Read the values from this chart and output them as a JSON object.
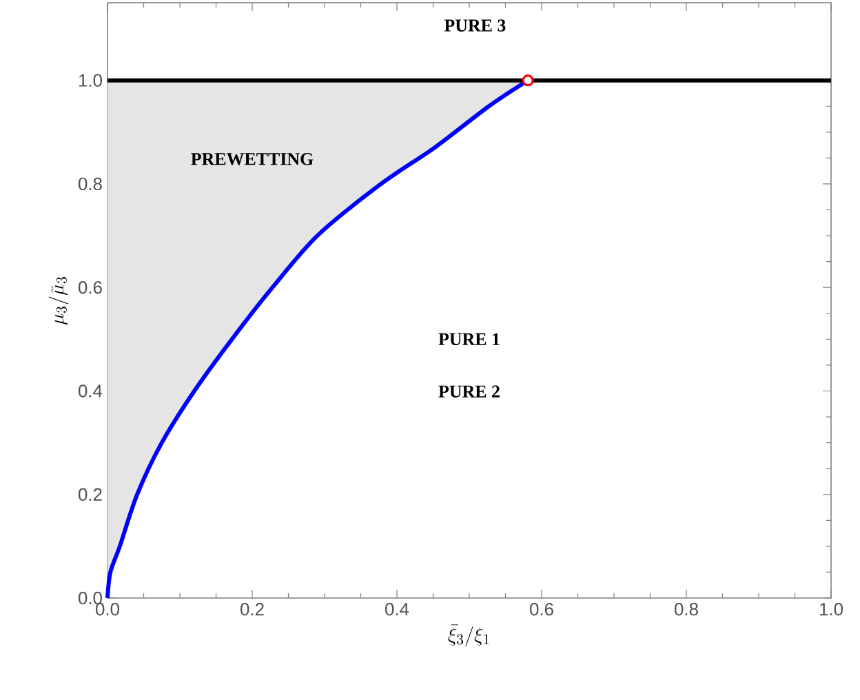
{
  "chart_data": {
    "type": "line",
    "xlabel": "\\bar{\\xi}_3/\\xi_1",
    "ylabel": "\\mu_3/\\bar{\\mu}_3",
    "xlim": [
      0,
      1.0
    ],
    "ylim": [
      0,
      1.15
    ],
    "xticks": [
      {
        "value": 0,
        "label": "0.0"
      },
      0.2,
      0.4,
      0.6,
      0.8,
      {
        "value": 1.0,
        "label": "1.0"
      }
    ],
    "yticks": [
      {
        "value": 0,
        "label": "0.0"
      },
      0.2,
      0.4,
      0.6,
      0.8,
      {
        "value": 1.0,
        "label": "1.0"
      }
    ],
    "series": [
      {
        "color": "#0000ff",
        "x": [
          0,
          0.004,
          0.017,
          0.041,
          0.075,
          0.12,
          0.172,
          0.228,
          0.29,
          0.378,
          0.452,
          0.527,
          0.581
        ],
        "values": [
          0,
          0.05,
          0.1,
          0.2,
          0.3,
          0.4,
          0.5,
          0.6,
          0.7,
          0.8,
          0.87,
          0.95,
          1.0
        ],
        "lower": [
          0,
          0.05,
          0.1,
          0.2,
          0.3,
          0.4,
          0.5,
          0.6,
          0.7,
          0.8,
          0.87,
          0.95,
          1.0
        ],
        "upper": [
          1,
          1,
          1,
          1,
          1,
          1,
          1,
          1,
          1,
          1,
          1,
          1,
          1
        ]
      },
      {
        "type": "scatter",
        "color": "#ff0000",
        "marker": "circle",
        "x": [
          0.581
        ],
        "values": [
          1.0
        ]
      }
    ],
    "ref_lines": [
      {
        "axis": "y",
        "value": 1.0,
        "color": "#000000"
      }
    ],
    "annotations": [
      "PURE 3",
      "PREWETTING",
      "PURE 1",
      "PURE 2"
    ]
  }
}
